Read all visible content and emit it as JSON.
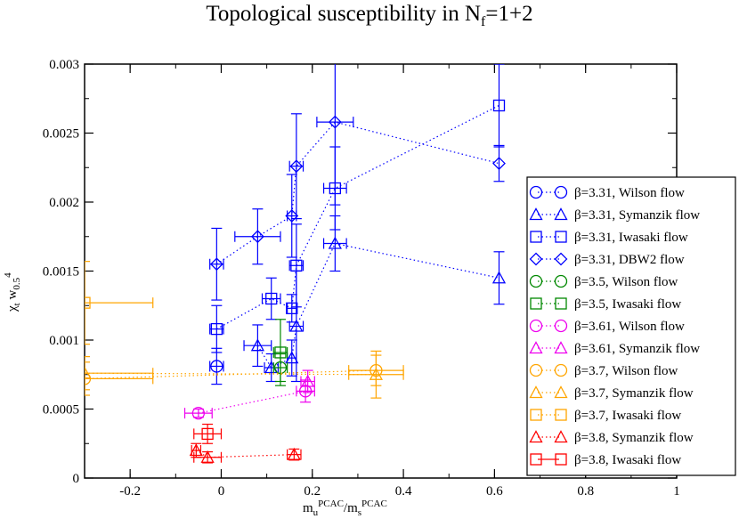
{
  "chart_data": {
    "type": "scatter",
    "title": "Topological susceptibility in N",
    "title_sub": "f",
    "title_tail": "=1+2",
    "xlabel": {
      "base1": "m",
      "sub1": "u",
      "sup1": "PCAC",
      "slash": "/",
      "base2": "m",
      "sub2": "s",
      "sup2": "PCAC"
    },
    "ylabel": {
      "chi": "χ",
      "sub1": "t",
      "w": "w",
      "sub2": "0.5",
      "sup": "4"
    },
    "xlim": [
      -0.3,
      1.0
    ],
    "ylim": [
      0,
      0.003
    ],
    "xticks": [
      {
        "v": -0.2,
        "label": "-0.2"
      },
      {
        "v": 0,
        "label": "0"
      },
      {
        "v": 0.2,
        "label": "0.2"
      },
      {
        "v": 0.4,
        "label": "0.4"
      },
      {
        "v": 0.6,
        "label": "0.6"
      },
      {
        "v": 0.8,
        "label": "0.8"
      },
      {
        "v": 1.0,
        "label": "1"
      }
    ],
    "yticks": [
      {
        "v": 0,
        "label": "0"
      },
      {
        "v": 0.0005,
        "label": "0.0005"
      },
      {
        "v": 0.001,
        "label": "0.001"
      },
      {
        "v": 0.0015,
        "label": "0.0015"
      },
      {
        "v": 0.002,
        "label": "0.002"
      },
      {
        "v": 0.0025,
        "label": "0.0025"
      },
      {
        "v": 0.003,
        "label": "0.003"
      }
    ],
    "legend_position": "right",
    "series": [
      {
        "name": "β=3.31, Wilson flow",
        "color": "#0000ff",
        "marker": "circle",
        "line": "dotted",
        "points": [
          {
            "x": -0.01,
            "y": 0.00081,
            "xerr": 0.015,
            "yerr": 0.00013
          }
        ]
      },
      {
        "name": "β=3.31, Symanzik flow",
        "color": "#0000ff",
        "marker": "triangle",
        "line": "dotted",
        "points": [
          {
            "x": 0.11,
            "y": 0.0008,
            "xerr": 0.015,
            "yerr": 0.0001
          },
          {
            "x": 0.08,
            "y": 0.00096,
            "xerr": 0.03,
            "yerr": 0.00015
          },
          {
            "x": 0.155,
            "y": 0.00087,
            "xerr": 0.01,
            "yerr": 0.00013
          },
          {
            "x": 0.165,
            "y": 0.0011,
            "xerr": 0.015,
            "yerr": 0.0004
          },
          {
            "x": 0.25,
            "y": 0.0017,
            "xerr": 0.025,
            "yerr": 0.0002
          },
          {
            "x": 0.61,
            "y": 0.00145,
            "xerr": 0.0,
            "yerr": 0.00019
          }
        ]
      },
      {
        "name": "β=3.31, Iwasaki flow",
        "color": "#0000ff",
        "marker": "square",
        "line": "dotted",
        "points": [
          {
            "x": -0.01,
            "y": 0.00108,
            "xerr": 0.015,
            "yerr": 0.00017
          },
          {
            "x": 0.11,
            "y": 0.0013,
            "xerr": 0.02,
            "yerr": 0.00015
          },
          {
            "x": 0.155,
            "y": 0.00123,
            "xerr": 0.01,
            "yerr": 0.0001
          },
          {
            "x": 0.165,
            "y": 0.00154,
            "xerr": 0.015,
            "yerr": 0.0003
          },
          {
            "x": 0.25,
            "y": 0.0021,
            "xerr": 0.025,
            "yerr": 0.0003
          },
          {
            "x": 0.61,
            "y": 0.0027,
            "xerr": 0.0,
            "yerr": 0.0003
          }
        ]
      },
      {
        "name": "β=3.31, DBW2 flow",
        "color": "#0000ff",
        "marker": "diamond",
        "line": "dotted",
        "points": [
          {
            "x": -0.01,
            "y": 0.00155,
            "xerr": 0.015,
            "yerr": 0.00026
          },
          {
            "x": 0.08,
            "y": 0.00175,
            "xerr": 0.05,
            "yerr": 0.0002
          },
          {
            "x": 0.155,
            "y": 0.0019,
            "xerr": 0.01,
            "yerr": 0.0003
          },
          {
            "x": 0.165,
            "y": 0.00226,
            "xerr": 0.015,
            "yerr": 0.00038
          },
          {
            "x": 0.25,
            "y": 0.00258,
            "xerr": 0.04,
            "yerr": 0.0006
          },
          {
            "x": 0.61,
            "y": 0.00228,
            "xerr": 0.0,
            "yerr": 0.00013
          }
        ]
      },
      {
        "name": "β=3.5, Wilson flow",
        "color": "#008800",
        "marker": "circle",
        "line": "dotted",
        "points": [
          {
            "x": 0.13,
            "y": 0.0008,
            "xerr": 0.015,
            "yerr": 0.0001
          }
        ]
      },
      {
        "name": "β=3.5, Iwasaki flow",
        "color": "#008800",
        "marker": "square",
        "line": "dotted",
        "points": [
          {
            "x": 0.13,
            "y": 0.00091,
            "xerr": 0.015,
            "yerr": 0.00024
          }
        ]
      },
      {
        "name": "β=3.61, Wilson flow",
        "color": "#ee00ee",
        "marker": "circle",
        "line": "dotted",
        "points": [
          {
            "x": -0.05,
            "y": 0.00047,
            "xerr": 0.03,
            "yerr": 3e-05
          },
          {
            "x": 0.185,
            "y": 0.00063,
            "xerr": 0.02,
            "yerr": 8e-05
          }
        ]
      },
      {
        "name": "β=3.61, Symanzik flow",
        "color": "#ee00ee",
        "marker": "triangle",
        "line": "dotted",
        "points": [
          {
            "x": 0.19,
            "y": 0.0007,
            "xerr": 0.015,
            "yerr": 8e-05
          }
        ]
      },
      {
        "name": "β=3.7, Wilson flow",
        "color": "#ffa500",
        "marker": "circle",
        "line": "dotted",
        "points": [
          {
            "x": -0.3,
            "y": 0.00072,
            "xerr": 0.15,
            "yerr": 0.00012
          },
          {
            "x": 0.34,
            "y": 0.00078,
            "xerr": 0.06,
            "yerr": 0.00011
          }
        ]
      },
      {
        "name": "β=3.7, Symanzik flow",
        "color": "#ffa500",
        "marker": "triangle",
        "line": "dotted",
        "points": [
          {
            "x": -0.3,
            "y": 0.00076,
            "xerr": 0.15,
            "yerr": 0.00012
          },
          {
            "x": 0.34,
            "y": 0.00075,
            "xerr": 0.06,
            "yerr": 0.00017
          }
        ]
      },
      {
        "name": "β=3.7, Iwasaki flow",
        "color": "#ffa500",
        "marker": "square",
        "line": "dotted",
        "points": [
          {
            "x": -0.3,
            "y": 0.00127,
            "xerr": 0.15,
            "yerr": 0.0003
          }
        ]
      },
      {
        "name": "β=3.8, Symanzik flow",
        "color": "#ff0000",
        "marker": "triangle",
        "line": "dotted",
        "points": [
          {
            "x": -0.055,
            "y": 0.0002,
            "xerr": 0.01,
            "yerr": 5e-05
          },
          {
            "x": -0.03,
            "y": 0.00015,
            "xerr": 0.03,
            "yerr": 4e-05
          },
          {
            "x": 0.16,
            "y": 0.00017,
            "xerr": 0.015,
            "yerr": 4e-05
          }
        ]
      },
      {
        "name": "β=3.8, Iwasaki flow",
        "color": "#ff0000",
        "marker": "square",
        "line": "solid",
        "points": [
          {
            "x": -0.03,
            "y": 0.00032,
            "xerr": 0.03,
            "yerr": 7e-05
          }
        ]
      }
    ]
  }
}
